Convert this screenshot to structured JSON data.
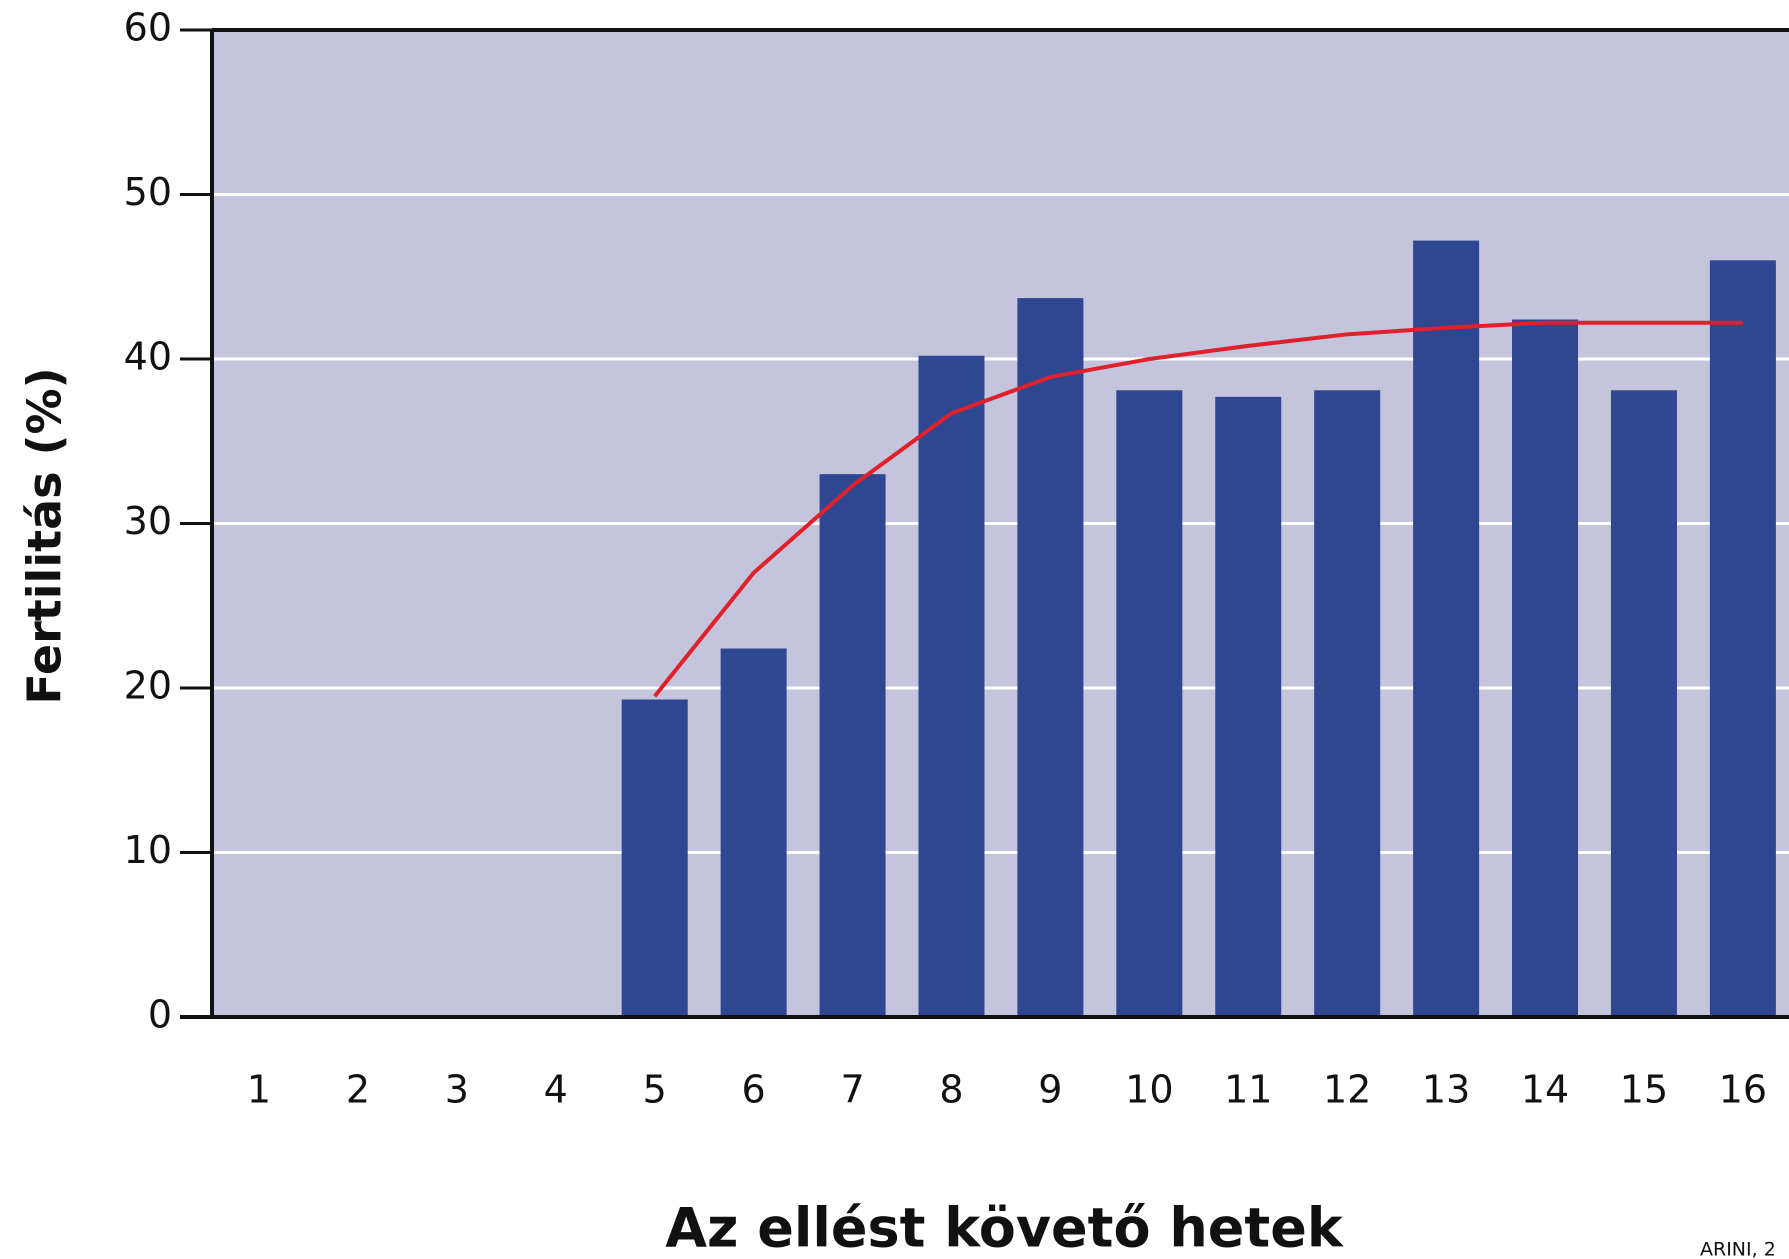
{
  "chart_data": {
    "type": "bar",
    "y_label": "Fertilitás (%)",
    "x_label": "Az ellést követő hetek",
    "source": "ARINI, 2",
    "categories": [
      "1",
      "2",
      "3",
      "4",
      "5",
      "6",
      "7",
      "8",
      "9",
      "10",
      "11",
      "12",
      "13",
      "14",
      "15",
      "16"
    ],
    "series": [
      {
        "type": "bar",
        "color": "#2f4690",
        "values": [
          0,
          0,
          0,
          0,
          19.3,
          22.4,
          33.0,
          40.2,
          43.7,
          38.1,
          37.7,
          38.1,
          47.2,
          42.4,
          38.1,
          46.0
        ]
      },
      {
        "type": "line",
        "color": "#e0202a",
        "values": [
          null,
          null,
          null,
          null,
          19.5,
          27.0,
          32.3,
          36.7,
          38.9,
          40.0,
          40.8,
          41.5,
          41.9,
          42.2,
          42.2,
          42.2
        ]
      }
    ],
    "ylim": [
      0,
      60
    ],
    "yticks": [
      0,
      10,
      20,
      30,
      40,
      50,
      60
    ],
    "grid": true,
    "background": "#c4c4dc"
  }
}
